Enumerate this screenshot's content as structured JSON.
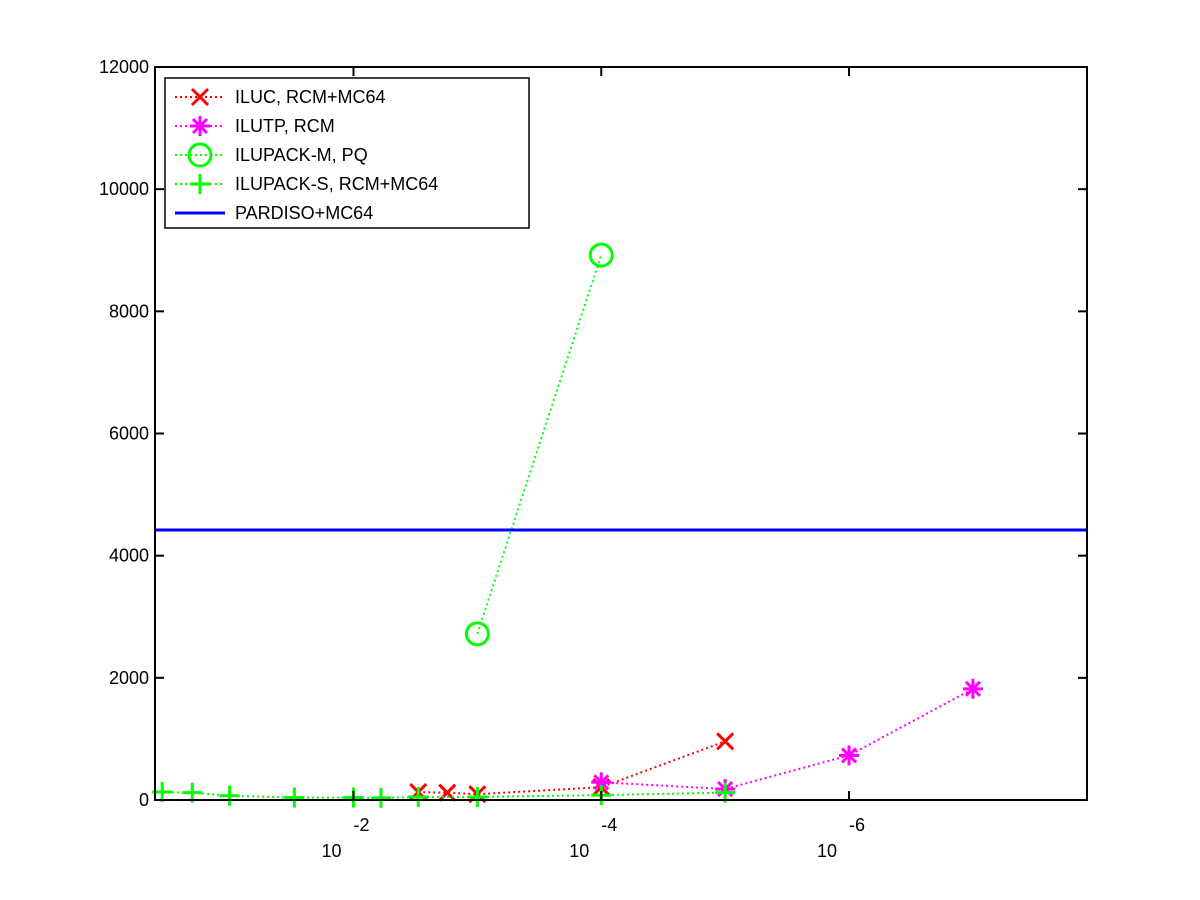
{
  "chart_data": {
    "type": "line",
    "x_scale": "log",
    "x_reversed": true,
    "xlim": [
      0.4,
      1.2e-08
    ],
    "ylim": [
      0,
      12000
    ],
    "grid": false,
    "legend_placement": "top-left",
    "title": "",
    "xlabel": "",
    "ylabel": "",
    "x_ticks": [
      {
        "value": 0.01,
        "base": "10",
        "exponent": "-2"
      },
      {
        "value": 0.0001,
        "base": "10",
        "exponent": "-4"
      },
      {
        "value": 1e-06,
        "base": "10",
        "exponent": "-6"
      }
    ],
    "y_ticks": [
      {
        "value": 0,
        "label": "0"
      },
      {
        "value": 2000,
        "label": "2000"
      },
      {
        "value": 4000,
        "label": "4000"
      },
      {
        "value": 6000,
        "label": "6000"
      },
      {
        "value": 8000,
        "label": "8000"
      },
      {
        "value": 10000,
        "label": "10000"
      },
      {
        "value": 12000,
        "label": "12000"
      }
    ],
    "series": [
      {
        "name": "ILUC, RCM+MC64",
        "color": "#ff0000",
        "marker": "x",
        "line_style": "dotted",
        "points": [
          [
            0.003,
            130
          ],
          [
            0.00175,
            120
          ],
          [
            0.001,
            95
          ],
          [
            0.0001,
            210
          ],
          [
            1e-05,
            960
          ]
        ]
      },
      {
        "name": "ILUTP, RCM",
        "color": "#ff00ff",
        "marker": "star",
        "line_style": "dotted",
        "points": [
          [
            0.0001,
            290
          ],
          [
            1e-05,
            180
          ],
          [
            1e-06,
            730
          ],
          [
            1e-07,
            1820
          ]
        ]
      },
      {
        "name": "ILUPACK-M, PQ",
        "color": "#00ff00",
        "marker": "circle",
        "line_style": "dotted",
        "points": [
          [
            0.001,
            2720
          ],
          [
            0.0001,
            8920
          ]
        ]
      },
      {
        "name": "ILUPACK-S, RCM+MC64",
        "color": "#00ff00",
        "marker": "plus",
        "line_style": "dotted",
        "points": [
          [
            0.35,
            130
          ],
          [
            0.2,
            120
          ],
          [
            0.1,
            70
          ],
          [
            0.03,
            40
          ],
          [
            0.01,
            40
          ],
          [
            0.006,
            35
          ],
          [
            0.003,
            50
          ],
          [
            0.001,
            50
          ],
          [
            0.0001,
            80
          ],
          [
            1e-05,
            120
          ]
        ]
      },
      {
        "name": "PARDISO+MC64",
        "color": "#0000ff",
        "marker": "none",
        "line_style": "solid",
        "constant": true,
        "points": [
          [
            0.4,
            4420
          ],
          [
            1.2e-08,
            4420
          ]
        ]
      }
    ]
  }
}
